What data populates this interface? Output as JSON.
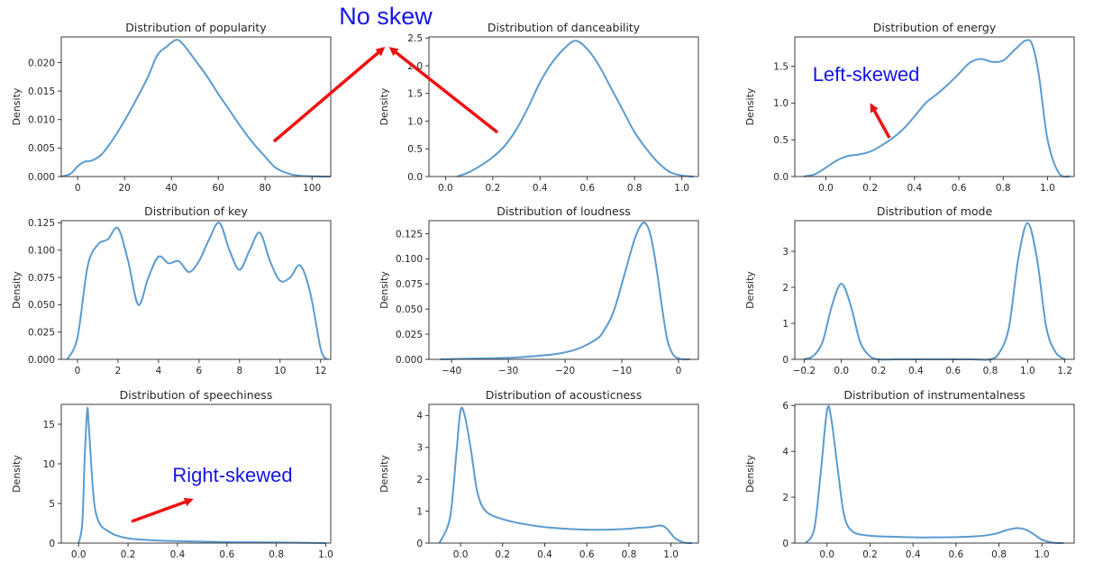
{
  "chart_data": [
    {
      "type": "line",
      "title": "Distribution of popularity",
      "ylabel": "Density",
      "xlim": [
        -7,
        108
      ],
      "ylim": [
        0,
        0.0245
      ],
      "xticks": [
        0,
        20,
        40,
        60,
        80,
        100
      ],
      "yticks": [
        0.0,
        0.005,
        0.01,
        0.015,
        0.02
      ],
      "xtick_labels": [
        "0",
        "20",
        "40",
        "60",
        "80",
        "100"
      ],
      "ytick_labels": [
        "0.000",
        "0.005",
        "0.010",
        "0.015",
        "0.020"
      ],
      "series": [
        {
          "x": [
            -7,
            -3,
            0,
            3,
            6,
            10,
            15,
            20,
            25,
            30,
            34,
            38,
            42,
            45,
            50,
            55,
            60,
            65,
            70,
            75,
            80,
            84,
            88,
            92,
            96,
            100,
            104,
            108
          ],
          "y": [
            0.0,
            0.0005,
            0.0018,
            0.0026,
            0.0028,
            0.0038,
            0.0065,
            0.0098,
            0.0135,
            0.0175,
            0.0213,
            0.0228,
            0.024,
            0.0232,
            0.0205,
            0.0177,
            0.0145,
            0.0115,
            0.0085,
            0.0058,
            0.0035,
            0.0017,
            0.0008,
            0.0003,
            0.0001,
            5e-05,
            0.0,
            0.0
          ]
        }
      ]
    },
    {
      "type": "line",
      "title": "Distribution of danceability",
      "ylabel": "Density",
      "xlim": [
        -0.07,
        1.07
      ],
      "ylim": [
        0,
        2.52
      ],
      "xticks": [
        0.0,
        0.2,
        0.4,
        0.6,
        0.8,
        1.0
      ],
      "yticks": [
        0.0,
        0.5,
        1.0,
        1.5,
        2.0,
        2.5
      ],
      "xtick_labels": [
        "0.0",
        "0.2",
        "0.4",
        "0.6",
        "0.8",
        "1.0"
      ],
      "ytick_labels": [
        "0.0",
        "0.5",
        "1.0",
        "1.5",
        "2.0",
        "2.5"
      ],
      "series": [
        {
          "x": [
            0.05,
            0.1,
            0.15,
            0.2,
            0.25,
            0.3,
            0.35,
            0.4,
            0.45,
            0.5,
            0.55,
            0.6,
            0.65,
            0.7,
            0.75,
            0.8,
            0.85,
            0.9,
            0.95,
            1.0,
            1.05
          ],
          "y": [
            0.0,
            0.08,
            0.2,
            0.35,
            0.55,
            0.85,
            1.25,
            1.7,
            2.05,
            2.3,
            2.45,
            2.3,
            2.0,
            1.6,
            1.2,
            0.8,
            0.5,
            0.25,
            0.08,
            0.02,
            0.0
          ]
        }
      ]
    },
    {
      "type": "line",
      "title": "Distribution of energy",
      "ylabel": "Density",
      "xlim": [
        -0.14,
        1.12
      ],
      "ylim": [
        0,
        1.9
      ],
      "xticks": [
        0.0,
        0.2,
        0.4,
        0.6,
        0.8,
        1.0
      ],
      "yticks": [
        0.0,
        0.5,
        1.0,
        1.5
      ],
      "xtick_labels": [
        "0.0",
        "0.2",
        "0.4",
        "0.6",
        "0.8",
        "1.0"
      ],
      "ytick_labels": [
        "0.0",
        "0.5",
        "1.0",
        "1.5"
      ],
      "series": [
        {
          "x": [
            -0.1,
            -0.05,
            0.0,
            0.05,
            0.1,
            0.15,
            0.2,
            0.25,
            0.3,
            0.35,
            0.4,
            0.45,
            0.5,
            0.55,
            0.6,
            0.65,
            0.7,
            0.75,
            0.8,
            0.85,
            0.9,
            0.93,
            0.96,
            1.0,
            1.05,
            1.1
          ],
          "y": [
            0.0,
            0.03,
            0.12,
            0.22,
            0.28,
            0.3,
            0.34,
            0.42,
            0.52,
            0.65,
            0.82,
            1.0,
            1.12,
            1.25,
            1.4,
            1.55,
            1.6,
            1.56,
            1.58,
            1.72,
            1.85,
            1.8,
            1.4,
            0.5,
            0.05,
            0.0
          ]
        }
      ]
    },
    {
      "type": "line",
      "title": "Distribution of key",
      "ylabel": "Density",
      "xlim": [
        -0.8,
        12.5
      ],
      "ylim": [
        0,
        0.127
      ],
      "xticks": [
        0,
        2,
        4,
        6,
        8,
        10,
        12
      ],
      "yticks": [
        0.0,
        0.025,
        0.05,
        0.075,
        0.1,
        0.125
      ],
      "xtick_labels": [
        "0",
        "2",
        "4",
        "6",
        "8",
        "10",
        "12"
      ],
      "ytick_labels": [
        "0.000",
        "0.025",
        "0.050",
        "0.075",
        "0.100",
        "0.125"
      ],
      "series": [
        {
          "x": [
            -0.5,
            0.0,
            0.5,
            1.0,
            1.5,
            2.0,
            2.5,
            3.0,
            3.5,
            4.0,
            4.5,
            5.0,
            5.5,
            6.0,
            6.5,
            7.0,
            7.5,
            8.0,
            8.5,
            9.0,
            9.5,
            10.0,
            10.5,
            11.0,
            11.5,
            12.0,
            12.3
          ],
          "y": [
            0.0,
            0.02,
            0.085,
            0.105,
            0.11,
            0.12,
            0.09,
            0.05,
            0.075,
            0.094,
            0.088,
            0.09,
            0.08,
            0.09,
            0.11,
            0.125,
            0.1,
            0.082,
            0.1,
            0.116,
            0.09,
            0.072,
            0.075,
            0.086,
            0.06,
            0.01,
            0.0
          ]
        }
      ]
    },
    {
      "type": "line",
      "title": "Distribution of loudness",
      "ylabel": "Density",
      "xlim": [
        -44,
        3.5
      ],
      "ylim": [
        0,
        0.138
      ],
      "xticks": [
        -40,
        -30,
        -20,
        -10,
        0
      ],
      "yticks": [
        0.0,
        0.025,
        0.05,
        0.075,
        0.1,
        0.125
      ],
      "xtick_labels": [
        "−40",
        "−30",
        "−20",
        "−10",
        "0"
      ],
      "ytick_labels": [
        "0.000",
        "0.025",
        "0.050",
        "0.075",
        "0.100",
        "0.125"
      ],
      "series": [
        {
          "x": [
            -42,
            -38,
            -34,
            -30,
            -26,
            -22,
            -20,
            -18,
            -16,
            -14,
            -13,
            -12,
            -11,
            -10,
            -9,
            -8,
            -7,
            -6,
            -5,
            -4,
            -3,
            -2,
            -1,
            0,
            1,
            2
          ],
          "y": [
            0.0,
            0.0005,
            0.001,
            0.0015,
            0.003,
            0.005,
            0.007,
            0.01,
            0.015,
            0.022,
            0.03,
            0.04,
            0.055,
            0.075,
            0.095,
            0.115,
            0.13,
            0.136,
            0.125,
            0.095,
            0.055,
            0.02,
            0.005,
            0.001,
            0.0,
            0.0
          ]
        }
      ]
    },
    {
      "type": "line",
      "title": "Distribution of mode",
      "ylabel": "Density",
      "xlim": [
        -0.25,
        1.25
      ],
      "ylim": [
        0,
        3.85
      ],
      "xticks": [
        -0.2,
        0.0,
        0.2,
        0.4,
        0.6,
        0.8,
        1.0,
        1.2
      ],
      "yticks": [
        0,
        1,
        2,
        3
      ],
      "xtick_labels": [
        "−0.2",
        "0.0",
        "0.2",
        "0.4",
        "0.6",
        "0.8",
        "1.0",
        "1.2"
      ],
      "ytick_labels": [
        "0",
        "1",
        "2",
        "3"
      ],
      "series": [
        {
          "x": [
            -0.2,
            -0.15,
            -0.1,
            -0.05,
            0.0,
            0.05,
            0.1,
            0.15,
            0.2,
            0.3,
            0.4,
            0.5,
            0.6,
            0.7,
            0.8,
            0.85,
            0.9,
            0.95,
            1.0,
            1.05,
            1.1,
            1.15,
            1.2
          ],
          "y": [
            0.0,
            0.1,
            0.5,
            1.5,
            2.1,
            1.5,
            0.5,
            0.1,
            0.0,
            0.0,
            0.0,
            0.0,
            0.0,
            0.0,
            0.0,
            0.2,
            0.9,
            2.8,
            3.78,
            2.8,
            0.9,
            0.2,
            0.0
          ]
        }
      ]
    },
    {
      "type": "line",
      "title": "Distribution of speechiness",
      "ylabel": "Density",
      "xlim": [
        -0.07,
        1.02
      ],
      "ylim": [
        0,
        17.5
      ],
      "xticks": [
        0.0,
        0.2,
        0.4,
        0.6,
        0.8,
        1.0
      ],
      "yticks": [
        0,
        5,
        10,
        15
      ],
      "xtick_labels": [
        "0.0",
        "0.2",
        "0.4",
        "0.6",
        "0.8",
        "1.0"
      ],
      "ytick_labels": [
        "0",
        "5",
        "10",
        "15"
      ],
      "series": [
        {
          "x": [
            0.0,
            0.015,
            0.025,
            0.035,
            0.04,
            0.05,
            0.06,
            0.07,
            0.09,
            0.12,
            0.15,
            0.2,
            0.3,
            0.4,
            0.5,
            0.6,
            0.7,
            0.8,
            0.9,
            1.0
          ],
          "y": [
            0.0,
            2.5,
            11.0,
            16.8,
            15.5,
            10.5,
            6.0,
            3.8,
            2.2,
            1.5,
            1.0,
            0.6,
            0.35,
            0.25,
            0.18,
            0.12,
            0.1,
            0.08,
            0.05,
            0.0
          ]
        }
      ]
    },
    {
      "type": "line",
      "title": "Distribution of acousticness",
      "ylabel": "Density",
      "xlim": [
        -0.15,
        1.13
      ],
      "ylim": [
        0,
        4.35
      ],
      "xticks": [
        0.0,
        0.2,
        0.4,
        0.6,
        0.8,
        1.0
      ],
      "yticks": [
        0,
        1,
        2,
        3,
        4
      ],
      "xtick_labels": [
        "0.0",
        "0.2",
        "0.4",
        "0.6",
        "0.8",
        "1.0"
      ],
      "ytick_labels": [
        "0",
        "1",
        "2",
        "3",
        "4"
      ],
      "series": [
        {
          "x": [
            -0.1,
            -0.05,
            -0.02,
            0.0,
            0.02,
            0.05,
            0.08,
            0.12,
            0.2,
            0.3,
            0.4,
            0.5,
            0.6,
            0.7,
            0.8,
            0.85,
            0.9,
            0.95,
            0.98,
            1.02,
            1.06,
            1.1
          ],
          "y": [
            0.0,
            0.8,
            2.8,
            4.15,
            4.0,
            2.9,
            1.6,
            1.0,
            0.75,
            0.6,
            0.5,
            0.45,
            0.42,
            0.42,
            0.45,
            0.48,
            0.5,
            0.55,
            0.45,
            0.15,
            0.02,
            0.0
          ]
        }
      ]
    },
    {
      "type": "line",
      "title": "Distribution of instrumentalness",
      "ylabel": "Density",
      "xlim": [
        -0.15,
        1.15
      ],
      "ylim": [
        0,
        6.05
      ],
      "xticks": [
        0.0,
        0.2,
        0.4,
        0.6,
        0.8,
        1.0
      ],
      "yticks": [
        0,
        2,
        4,
        6
      ],
      "xtick_labels": [
        "0.0",
        "0.2",
        "0.4",
        "0.6",
        "0.8",
        "1.0"
      ],
      "ytick_labels": [
        "0",
        "2",
        "4",
        "6"
      ],
      "series": [
        {
          "x": [
            -0.1,
            -0.06,
            -0.03,
            0.0,
            0.02,
            0.05,
            0.08,
            0.12,
            0.2,
            0.3,
            0.4,
            0.5,
            0.6,
            0.7,
            0.78,
            0.83,
            0.88,
            0.92,
            0.96,
            1.0,
            1.05,
            1.1
          ],
          "y": [
            0.0,
            0.6,
            3.0,
            5.8,
            5.4,
            3.2,
            1.2,
            0.5,
            0.32,
            0.28,
            0.25,
            0.25,
            0.26,
            0.3,
            0.4,
            0.55,
            0.65,
            0.6,
            0.4,
            0.15,
            0.02,
            0.0
          ]
        }
      ]
    }
  ],
  "annotations": {
    "no_skew": "No skew",
    "left_skewed": "Left-skewed",
    "right_skewed": "Right-skewed",
    "text_color": "#1414e6",
    "arrow_color": "#ee1111"
  },
  "style": {
    "line_color": "#5b9bd0",
    "axis_color": "#262626"
  }
}
